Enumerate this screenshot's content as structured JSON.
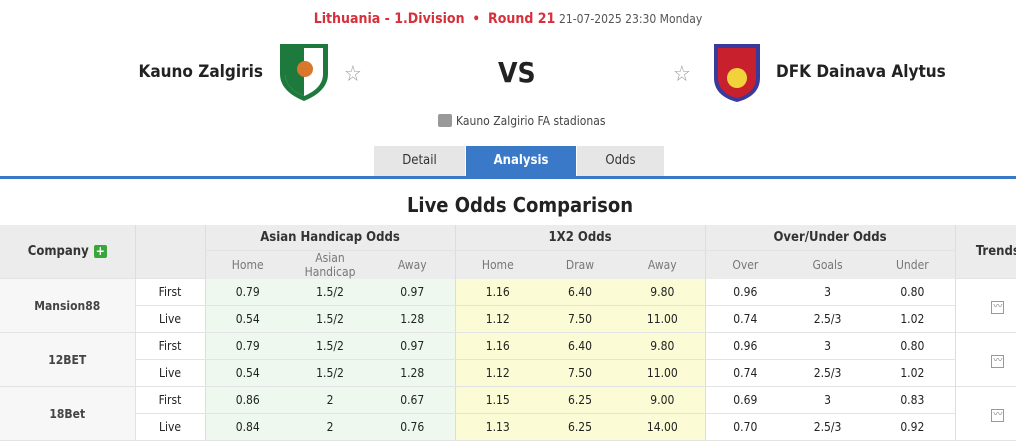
{
  "header": {
    "league": "Lithuania - 1.Division",
    "round": "Round 21",
    "datetime": "21-07-2025 23:30 Monday"
  },
  "home": {
    "name": "Kauno Zalgiris"
  },
  "away": {
    "name": "DFK Dainava Alytus"
  },
  "vs": "VS",
  "stadium": "Kauno Zalgirio FA stadionas",
  "tabs": [
    "Detail",
    "Analysis",
    "Odds"
  ],
  "title": "Live Odds Comparison",
  "table": {
    "company": "Company",
    "groups": [
      "Asian Handicap Odds",
      "1X2 Odds",
      "Over/Under Odds"
    ],
    "trends": "Trends",
    "sub": [
      "Home",
      "Asian Handicap",
      "Away",
      "Home",
      "Draw",
      "Away",
      "Over",
      "Goals",
      "Under"
    ],
    "rows": [
      {
        "company": "Mansion88",
        "first": [
          "0.79",
          "1.5/2",
          "0.97",
          "1.16",
          "6.40",
          "9.80",
          "0.96",
          "3",
          "0.80"
        ],
        "live": [
          "0.54",
          "1.5/2",
          "1.28",
          "1.12",
          "7.50",
          "11.00",
          "0.74",
          "2.5/3",
          "1.02"
        ]
      },
      {
        "company": "12BET",
        "first": [
          "0.79",
          "1.5/2",
          "0.97",
          "1.16",
          "6.40",
          "9.80",
          "0.96",
          "3",
          "0.80"
        ],
        "live": [
          "0.54",
          "1.5/2",
          "1.28",
          "1.12",
          "7.50",
          "11.00",
          "0.74",
          "2.5/3",
          "1.02"
        ]
      },
      {
        "company": "18Bet",
        "first": [
          "0.86",
          "2",
          "0.67",
          "1.15",
          "6.25",
          "9.00",
          "0.69",
          "3",
          "0.83"
        ],
        "live": [
          "0.84",
          "2",
          "0.76",
          "1.13",
          "6.25",
          "14.00",
          "0.70",
          "2.5/3",
          "0.92"
        ]
      }
    ],
    "first_label": "First",
    "live_label": "Live"
  }
}
